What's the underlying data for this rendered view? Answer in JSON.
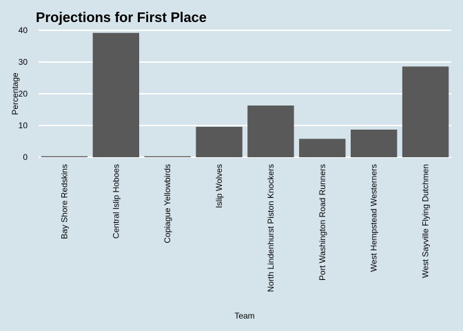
{
  "chart_data": {
    "type": "bar",
    "title": "Projections for First Place",
    "xlabel": "Team",
    "ylabel": "Percentage",
    "categories": [
      "Bay Shore Redskins",
      "Central Islip Hoboes",
      "Copiague Yellowbirds",
      "Islip Wolves",
      "North Lindenhurst Piston Knockers",
      "Port Washington Road Runners",
      "West Hempstead Westerners",
      "West Sayville Flying Dutchmen"
    ],
    "values": [
      0.3,
      39.2,
      0.3,
      9.6,
      16.3,
      5.8,
      8.7,
      28.6
    ],
    "ylim": [
      0,
      40
    ],
    "yticks": [
      "0",
      "10",
      "20",
      "30",
      "40"
    ],
    "grid": true,
    "colors": {
      "background": "#d5e4eb",
      "bar": "#595959",
      "grid": "#ffffff"
    }
  }
}
